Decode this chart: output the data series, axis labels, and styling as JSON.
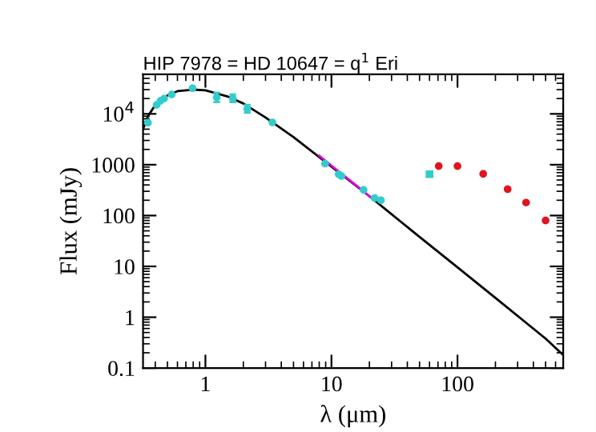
{
  "chart_data": {
    "type": "line",
    "title": "HIP 7978 = HD 10647 = q$^{1}$ Eri",
    "xlabel": "λ (μm)",
    "ylabel": "Flux (mJy)",
    "log": "xy",
    "xlim": [
      0.32,
      690
    ],
    "ylim": [
      0.1,
      60000
    ],
    "xticks": [
      1,
      10,
      100
    ],
    "yticks": [
      0.1,
      1,
      10,
      100,
      1000,
      {
        "value": 10000,
        "label": "10$^{4}$"
      }
    ],
    "grid": false,
    "series": [
      {
        "color": "#000000",
        "marker": "none",
        "line_style": "solid",
        "x": [
          0.32,
          0.35,
          0.4,
          0.5,
          0.6,
          0.8,
          1.0,
          1.5,
          2,
          3,
          5,
          20,
          50,
          100,
          200,
          500,
          690
        ],
        "values": [
          5000,
          9000,
          15000,
          23000,
          28000,
          30000,
          29000,
          22000,
          16000,
          8500,
          3500,
          240,
          38,
          9.6,
          2.4,
          0.38,
          0.18
        ]
      },
      {
        "color": "#e000e0",
        "marker": "none",
        "line_style": "solid",
        "x": [
          8,
          10,
          15,
          20,
          22
        ],
        "values": [
          1500,
          960,
          430,
          240,
          200
        ]
      },
      {
        "type": "scatter",
        "color": "#33cccc",
        "marker": "circle",
        "x": [
          0.35,
          0.41,
          0.44,
          0.47,
          0.54,
          0.79,
          1.23,
          1.65,
          2.15,
          3.4,
          8.9,
          11.4,
          12,
          18,
          22,
          24.7
        ],
        "values": [
          6700,
          15000,
          18000,
          20000,
          24000,
          32000,
          21000,
          20000,
          12500,
          6800,
          1050,
          650,
          600,
          320,
          220,
          200
        ],
        "errors": [
          null,
          null,
          null,
          null,
          null,
          null,
          [
            17000,
            26000
          ],
          [
            17000,
            24000
          ],
          [
            10500,
            15000
          ],
          null,
          null,
          null,
          null,
          null,
          null,
          null
        ]
      },
      {
        "type": "scatter",
        "color": "#33cccc",
        "marker": "square",
        "x": [
          60
        ],
        "values": [
          650
        ]
      },
      {
        "type": "scatter",
        "color": "#e01420",
        "marker": "circle",
        "x": [
          71,
          100,
          160,
          250,
          350,
          500
        ],
        "values": [
          940,
          940,
          660,
          330,
          180,
          80
        ]
      }
    ]
  }
}
